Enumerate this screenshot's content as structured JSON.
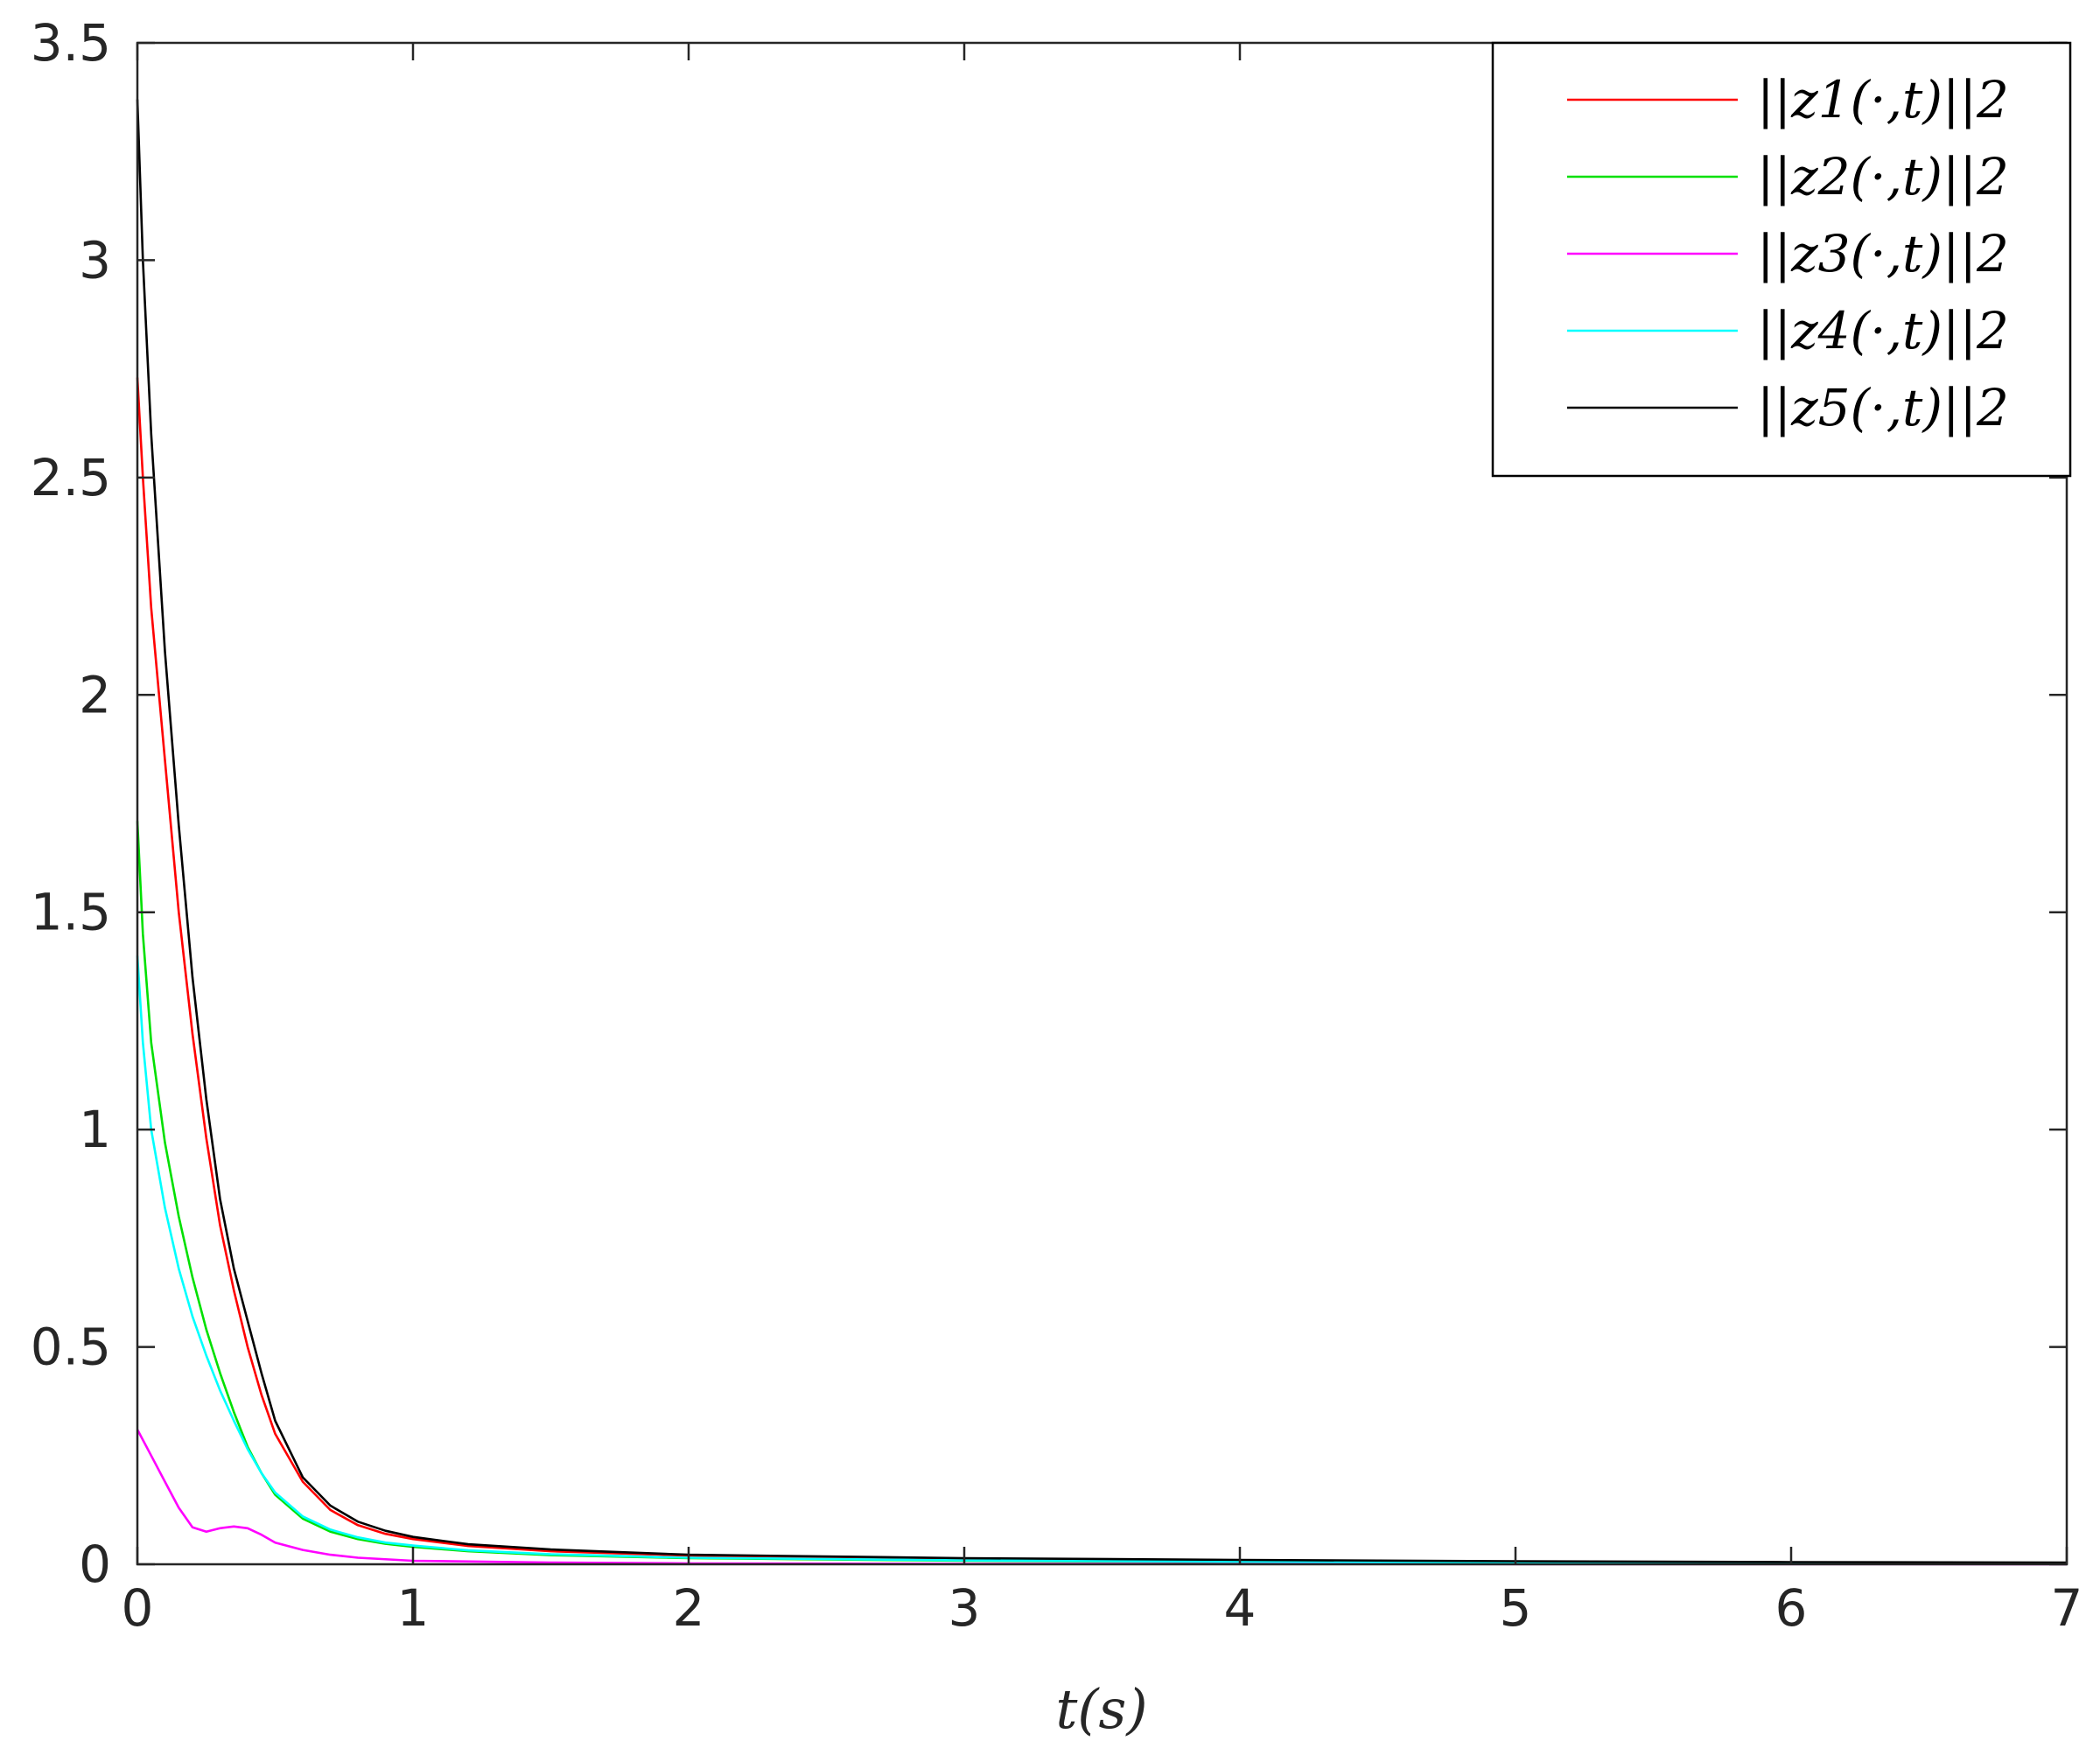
{
  "chart_data": {
    "type": "line",
    "title": "",
    "xlabel": "t(s)",
    "ylabel": "",
    "xlim": [
      0,
      7
    ],
    "ylim": [
      0,
      3.5
    ],
    "xticks": [
      0,
      1,
      2,
      3,
      4,
      5,
      6,
      7
    ],
    "xtick_labels": [
      "0",
      "1",
      "2",
      "3",
      "4",
      "5",
      "6",
      "7"
    ],
    "yticks": [
      0,
      0.5,
      1,
      1.5,
      2,
      2.5,
      3,
      3.5
    ],
    "ytick_labels": [
      "0",
      "0.5",
      "1",
      "1.5",
      "2",
      "2.5",
      "3",
      "3.5"
    ],
    "grid": false,
    "legend_position": "top-right",
    "series": [
      {
        "name": "||z1(·,t)||2",
        "color": "#ff0000",
        "x": [
          0,
          0.02,
          0.05,
          0.1,
          0.15,
          0.2,
          0.25,
          0.3,
          0.35,
          0.4,
          0.45,
          0.5,
          0.6,
          0.7,
          0.8,
          0.9,
          1.0,
          1.2,
          1.5,
          2.0,
          3.0,
          4.0,
          5.0,
          6.0,
          7.0
        ],
        "y": [
          2.73,
          2.5,
          2.2,
          1.85,
          1.5,
          1.22,
          0.98,
          0.78,
          0.63,
          0.5,
          0.39,
          0.3,
          0.19,
          0.125,
          0.09,
          0.07,
          0.058,
          0.042,
          0.03,
          0.02,
          0.012,
          0.008,
          0.006,
          0.004,
          0.003
        ]
      },
      {
        "name": "||z2(·,t)||2",
        "color": "#00e000",
        "x": [
          0,
          0.02,
          0.05,
          0.1,
          0.15,
          0.2,
          0.25,
          0.3,
          0.35,
          0.4,
          0.45,
          0.5,
          0.6,
          0.7,
          0.8,
          0.9,
          1.0,
          1.2,
          1.5,
          2.0,
          3.0,
          4.0,
          5.0,
          6.0,
          7.0
        ],
        "y": [
          1.71,
          1.45,
          1.2,
          0.97,
          0.8,
          0.66,
          0.54,
          0.44,
          0.35,
          0.27,
          0.21,
          0.16,
          0.105,
          0.075,
          0.058,
          0.047,
          0.04,
          0.03,
          0.021,
          0.014,
          0.008,
          0.005,
          0.004,
          0.003,
          0.002
        ]
      },
      {
        "name": "||z3(·,t)||2",
        "color": "#ff00ff",
        "x": [
          0,
          0.05,
          0.1,
          0.15,
          0.2,
          0.25,
          0.3,
          0.35,
          0.4,
          0.45,
          0.5,
          0.6,
          0.7,
          0.8,
          1.0,
          1.5,
          2.0,
          3.0,
          5.0,
          7.0
        ],
        "y": [
          0.31,
          0.25,
          0.19,
          0.13,
          0.085,
          0.075,
          0.083,
          0.087,
          0.083,
          0.068,
          0.05,
          0.033,
          0.022,
          0.015,
          0.008,
          0.004,
          0.002,
          0.001,
          0.0005,
          0.0003
        ]
      },
      {
        "name": "||z4(·,t)||2",
        "color": "#00ffff",
        "x": [
          0,
          0.02,
          0.05,
          0.1,
          0.15,
          0.2,
          0.25,
          0.3,
          0.35,
          0.4,
          0.45,
          0.5,
          0.6,
          0.7,
          0.8,
          0.9,
          1.0,
          1.2,
          1.5,
          2.0,
          3.0,
          4.0,
          5.0,
          6.0,
          7.0
        ],
        "y": [
          1.4,
          1.2,
          1.0,
          0.82,
          0.68,
          0.57,
          0.48,
          0.4,
          0.33,
          0.265,
          0.21,
          0.165,
          0.11,
          0.08,
          0.062,
          0.05,
          0.043,
          0.032,
          0.023,
          0.015,
          0.009,
          0.006,
          0.004,
          0.003,
          0.002
        ]
      },
      {
        "name": "||z5(·,t)||2",
        "color": "#000000",
        "x": [
          0,
          0.02,
          0.05,
          0.1,
          0.15,
          0.2,
          0.25,
          0.3,
          0.35,
          0.4,
          0.45,
          0.5,
          0.6,
          0.7,
          0.8,
          0.9,
          1.0,
          1.2,
          1.5,
          2.0,
          3.0,
          4.0,
          5.0,
          6.0,
          7.0
        ],
        "y": [
          3.37,
          3.0,
          2.6,
          2.1,
          1.7,
          1.35,
          1.07,
          0.84,
          0.68,
          0.56,
          0.44,
          0.33,
          0.2,
          0.135,
          0.098,
          0.077,
          0.063,
          0.046,
          0.034,
          0.022,
          0.014,
          0.01,
          0.007,
          0.005,
          0.004
        ]
      }
    ]
  }
}
